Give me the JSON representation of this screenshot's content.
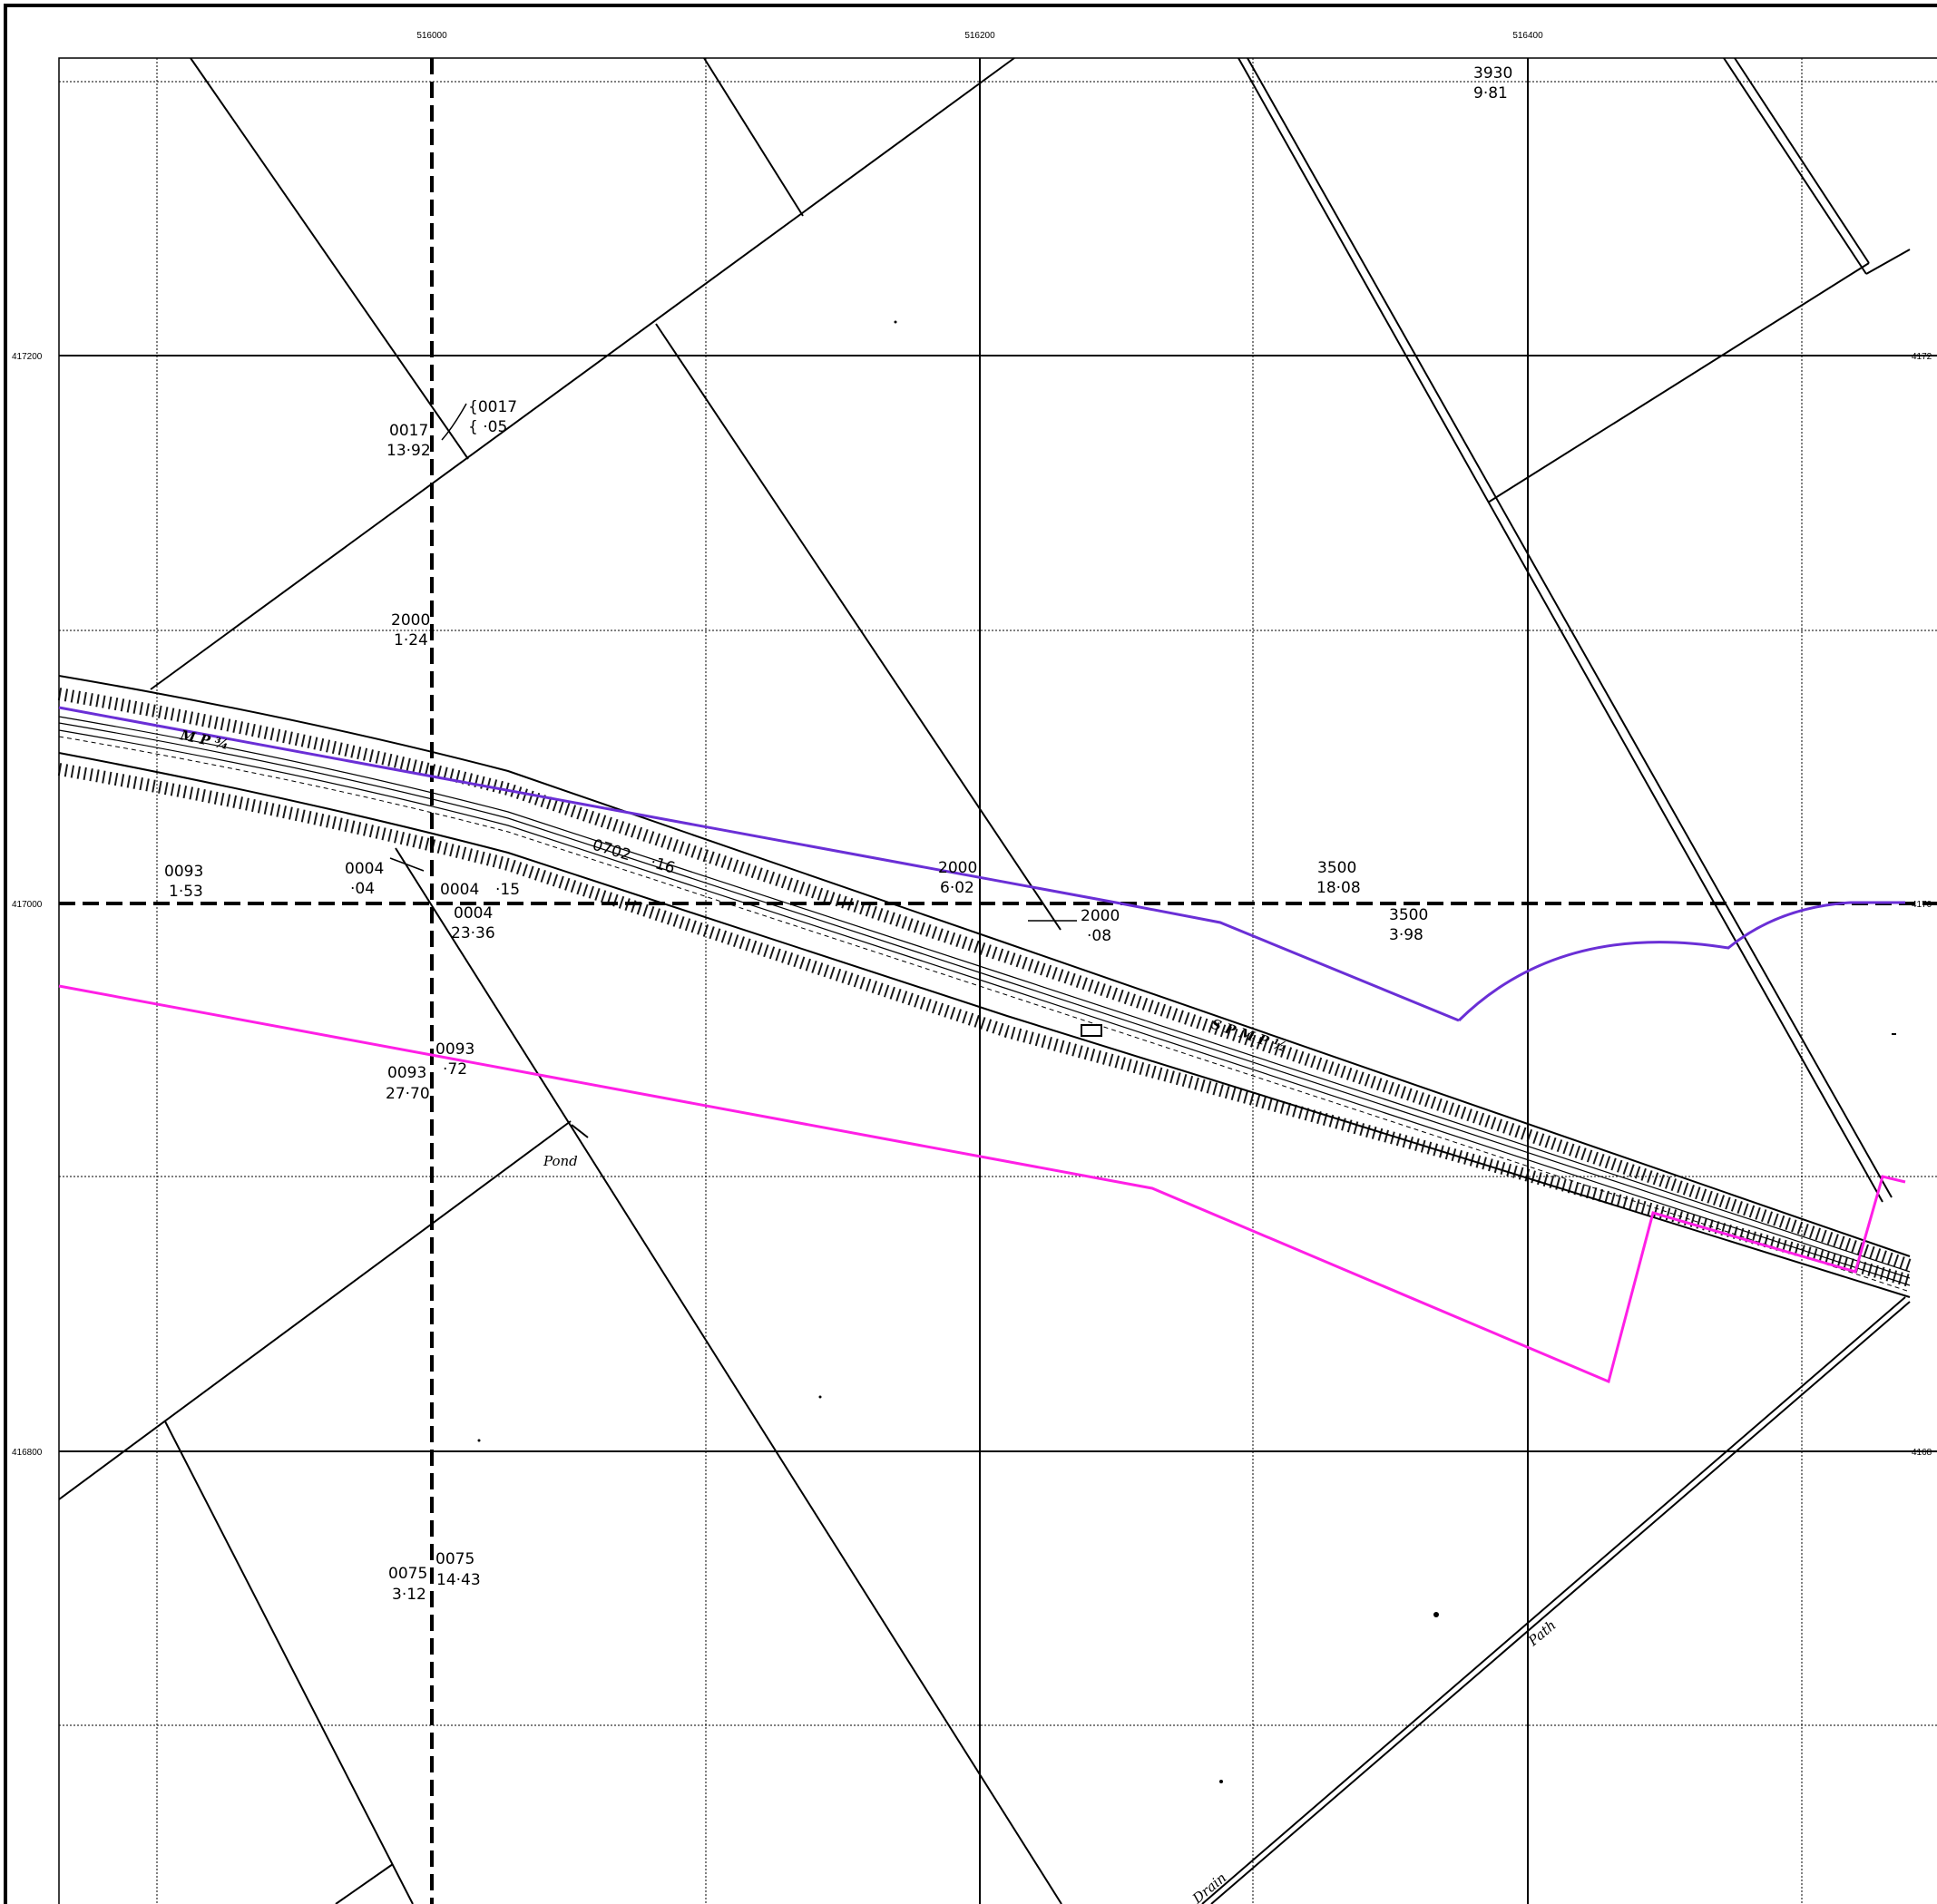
{
  "grid": {
    "easting_labels": [
      "516000",
      "516200",
      "516400"
    ],
    "northing_labels": [
      "417200",
      "417000",
      "416800"
    ],
    "northing_labels_right": [
      "4172",
      "4170",
      "4168"
    ]
  },
  "parcels": [
    {
      "id": "3930",
      "area": "9·81"
    },
    {
      "id": "0017",
      "area": "13·92"
    },
    {
      "id": "{0017",
      "area": "{ ·05"
    },
    {
      "id": "2000",
      "area": "1·24"
    },
    {
      "id": "0093",
      "area": "1·53"
    },
    {
      "id": "0004",
      "area": "·04"
    },
    {
      "id": "0004",
      "area": "·15"
    },
    {
      "id": "0004",
      "area": "23·36"
    },
    {
      "id": "0702",
      "area": "·16"
    },
    {
      "id": "2000",
      "area": "6·02"
    },
    {
      "id": "2000",
      "area": "·08"
    },
    {
      "id": "3500",
      "area": "18·08"
    },
    {
      "id": "3500",
      "area": "3·98"
    },
    {
      "id": "0093",
      "area": "27·70"
    },
    {
      "id": "0093",
      "area": "·72"
    },
    {
      "id": "0075",
      "area": "3·12"
    },
    {
      "id": "0075",
      "area": "14·43"
    }
  ],
  "features": {
    "pond": "Pond",
    "path": "Path",
    "drain": "Drain",
    "mp_west": "M P ¾",
    "sp_mp": "S P   M P ½"
  },
  "colors": {
    "boundary_purple": "#6a2fd6",
    "boundary_magenta": "#ff1fe6",
    "linework": "#000000",
    "background": "#ffffff"
  }
}
